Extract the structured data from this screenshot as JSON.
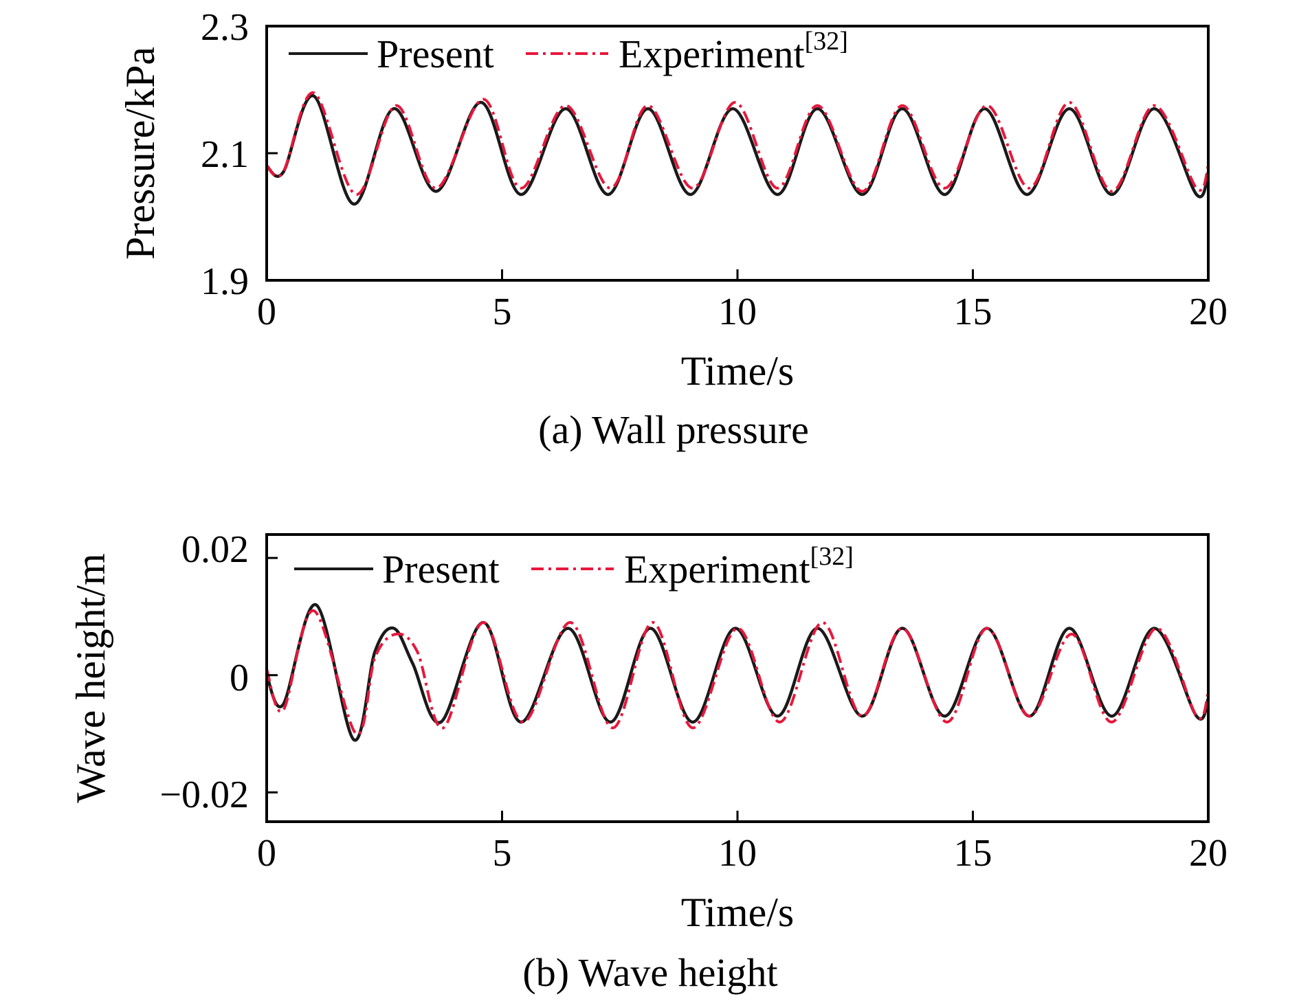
{
  "colors": {
    "present": "#1a1a1a",
    "experiment": "#e8173c",
    "axis": "#000000"
  },
  "chart_data": [
    {
      "type": "line",
      "caption": "(a) Wall pressure",
      "xlabel": "Time/s",
      "ylabel": "Pressure/kPa",
      "xlim": [
        0,
        20
      ],
      "ylim": [
        1.9,
        2.3
      ],
      "xticks": [
        "0",
        "5",
        "10",
        "15",
        "20"
      ],
      "yticks": [
        "1.9",
        "2.1",
        "2.3"
      ],
      "grid": false,
      "legend_position": "top-left",
      "series": [
        {
          "name": "Present",
          "style": "solid",
          "x": [
            0,
            0.35,
            1.0,
            1.85,
            2.7,
            3.6,
            4.55,
            5.4,
            6.35,
            7.25,
            8.1,
            9.0,
            9.9,
            10.85,
            11.7,
            12.65,
            13.5,
            14.4,
            15.25,
            16.15,
            17.05,
            17.95,
            18.85,
            19.75,
            20
          ],
          "y": [
            2.08,
            2.07,
            2.19,
            2.02,
            2.17,
            2.04,
            2.18,
            2.035,
            2.17,
            2.035,
            2.17,
            2.035,
            2.17,
            2.035,
            2.17,
            2.035,
            2.17,
            2.035,
            2.17,
            2.035,
            2.17,
            2.035,
            2.17,
            2.035,
            2.07
          ]
        },
        {
          "name": "Experiment",
          "name_superscript": "[32]",
          "style": "dash-dot",
          "x": [
            0,
            0.35,
            1.0,
            1.9,
            2.75,
            3.6,
            4.6,
            5.4,
            6.35,
            7.3,
            8.1,
            9.05,
            9.95,
            10.85,
            11.7,
            12.65,
            13.5,
            14.4,
            15.3,
            16.2,
            17.05,
            17.95,
            18.85,
            19.75,
            20
          ],
          "y": [
            2.08,
            2.07,
            2.195,
            2.035,
            2.175,
            2.045,
            2.185,
            2.045,
            2.175,
            2.045,
            2.175,
            2.045,
            2.18,
            2.045,
            2.175,
            2.04,
            2.175,
            2.045,
            2.175,
            2.045,
            2.18,
            2.04,
            2.175,
            2.045,
            2.08
          ]
        }
      ]
    },
    {
      "type": "line",
      "caption": "(b) Wave height",
      "xlabel": "Time/s",
      "ylabel": "Wave height/m",
      "xlim": [
        0,
        20
      ],
      "ylim": [
        -0.025,
        0.024
      ],
      "xticks": [
        "0",
        "5",
        "10",
        "15",
        "20"
      ],
      "yticks": [
        "−0.02",
        "0",
        "0.02"
      ],
      "ytick_values": [
        -0.02,
        0,
        0.02
      ],
      "grid": false,
      "legend_position": "top-left",
      "series": [
        {
          "name": "Present",
          "style": "solid",
          "x": [
            0,
            0.35,
            1.05,
            1.85,
            2.3,
            2.7,
            3.1,
            3.7,
            4.6,
            5.4,
            6.4,
            7.3,
            8.15,
            9.05,
            9.95,
            10.85,
            11.7,
            12.65,
            13.5,
            14.4,
            15.3,
            16.2,
            17.05,
            17.95,
            18.85,
            19.75,
            20
          ],
          "y": [
            0.0,
            -0.005,
            0.012,
            -0.011,
            0.004,
            0.008,
            0.002,
            -0.008,
            0.009,
            -0.008,
            0.008,
            -0.008,
            0.008,
            -0.008,
            0.008,
            -0.007,
            0.008,
            -0.007,
            0.008,
            -0.007,
            0.008,
            -0.007,
            0.008,
            -0.007,
            0.008,
            -0.007,
            -0.004
          ]
        },
        {
          "name": "Experiment",
          "name_superscript": "[32]",
          "style": "dash-dot",
          "x": [
            0,
            0.35,
            1.0,
            1.9,
            2.3,
            2.75,
            3.2,
            3.75,
            4.6,
            5.45,
            6.45,
            7.35,
            8.2,
            9.05,
            10.0,
            10.9,
            11.8,
            12.65,
            13.5,
            14.45,
            15.3,
            16.2,
            17.1,
            17.95,
            18.9,
            19.75,
            20
          ],
          "y": [
            0.001,
            -0.006,
            0.011,
            -0.01,
            0.003,
            0.007,
            0.004,
            -0.009,
            0.009,
            -0.008,
            0.009,
            -0.009,
            0.009,
            -0.009,
            0.008,
            -0.008,
            0.009,
            -0.007,
            0.008,
            -0.008,
            0.008,
            -0.007,
            0.007,
            -0.008,
            0.008,
            -0.007,
            -0.003
          ]
        }
      ]
    }
  ]
}
